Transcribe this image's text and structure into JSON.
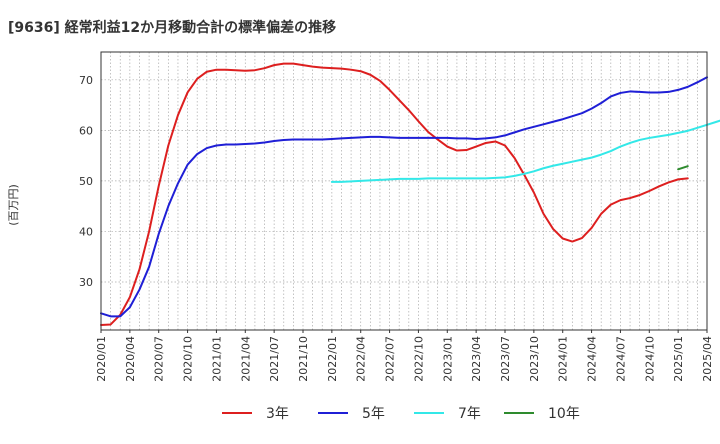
{
  "chart_data": {
    "type": "line",
    "title": "[9636]  経常利益12か月移動合計の標準偏差の推移",
    "ylabel": "(百万円)",
    "xlabel": "",
    "ylim": [
      20.5,
      75.5
    ],
    "y_ticks": [
      30,
      40,
      50,
      60,
      70
    ],
    "x_ticks": [
      "2020/01",
      "2020/04",
      "2020/07",
      "2020/10",
      "2021/01",
      "2021/04",
      "2021/07",
      "2021/10",
      "2022/01",
      "2022/04",
      "2022/07",
      "2022/10",
      "2023/01",
      "2023/04",
      "2023/07",
      "2023/10",
      "2024/01",
      "2024/04",
      "2024/07",
      "2024/10",
      "2025/01",
      "2025/04"
    ],
    "grid": true,
    "legend": "bottom",
    "series": [
      {
        "name": "3年",
        "color": "#dd1f1f",
        "start_month": 0,
        "values": [
          21.5,
          21.6,
          23.5,
          27,
          32.5,
          40,
          49,
          57,
          63,
          67.5,
          70.2,
          71.6,
          72,
          72,
          71.9,
          71.8,
          71.9,
          72.3,
          72.9,
          73.2,
          73.2,
          72.9,
          72.6,
          72.4,
          72.3,
          72.2,
          72,
          71.7,
          71,
          69.8,
          68,
          66,
          64,
          61.8,
          59.7,
          58.2,
          56.8,
          56,
          56.1,
          56.8,
          57.5,
          57.8,
          57,
          54.5,
          51.2,
          47.7,
          43.5,
          40.5,
          38.6,
          38,
          38.7,
          40.7,
          43.5,
          45.3,
          46.2,
          46.6,
          47.2,
          48,
          48.9,
          49.7,
          50.3,
          50.5
        ]
      },
      {
        "name": "5年",
        "color": "#1f1fd6",
        "start_month": 0,
        "values": [
          23.8,
          23.2,
          23.2,
          25,
          28.5,
          33,
          39.5,
          45,
          49.5,
          53.2,
          55.3,
          56.5,
          57,
          57.2,
          57.2,
          57.3,
          57.4,
          57.6,
          57.9,
          58.1,
          58.2,
          58.2,
          58.2,
          58.2,
          58.3,
          58.4,
          58.5,
          58.6,
          58.7,
          58.7,
          58.6,
          58.5,
          58.5,
          58.5,
          58.5,
          58.5,
          58.5,
          58.4,
          58.4,
          58.3,
          58.4,
          58.6,
          59,
          59.6,
          60.2,
          60.7,
          61.2,
          61.7,
          62.2,
          62.8,
          63.4,
          64.3,
          65.4,
          66.7,
          67.4,
          67.7,
          67.6,
          67.5,
          67.5,
          67.6,
          68,
          68.6,
          69.5,
          70.5
        ]
      },
      {
        "name": "7年",
        "color": "#33e8e8",
        "start_month": 24,
        "values": [
          49.8,
          49.8,
          49.9,
          50,
          50.1,
          50.2,
          50.3,
          50.4,
          50.4,
          50.4,
          50.5,
          50.5,
          50.5,
          50.5,
          50.5,
          50.5,
          50.5,
          50.6,
          50.7,
          51,
          51.4,
          51.9,
          52.5,
          53,
          53.4,
          53.8,
          54.2,
          54.6,
          55.2,
          55.9,
          56.8,
          57.5,
          58.1,
          58.5,
          58.8,
          59.1,
          59.5,
          59.9,
          60.5,
          61.1,
          61.7,
          62.3
        ]
      },
      {
        "name": "10年",
        "color": "#2e8b2e",
        "start_month": 60,
        "values": [
          52.3,
          52.9
        ]
      }
    ]
  }
}
